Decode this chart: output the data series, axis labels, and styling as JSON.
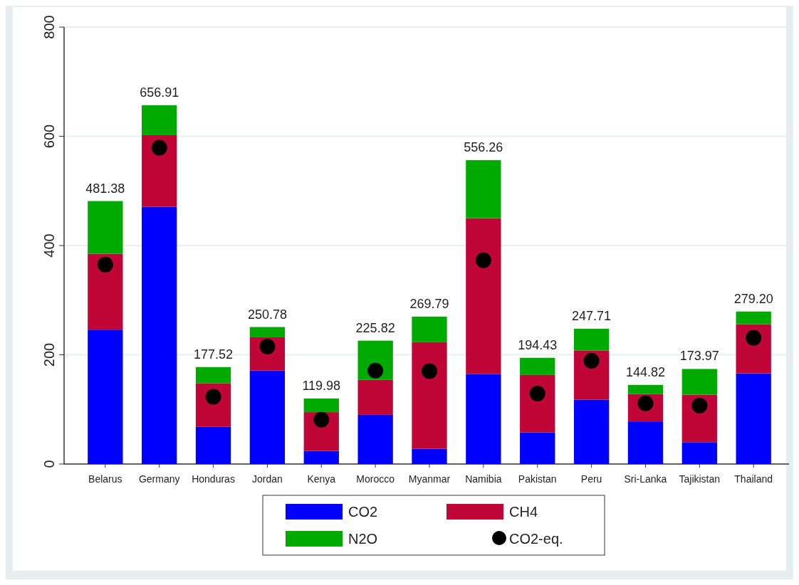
{
  "chart_data": {
    "type": "bar",
    "stacked": true,
    "categories": [
      "Belarus",
      "Germany",
      "Honduras",
      "Jordan",
      "Kenya",
      "Morocco",
      "Myanmar",
      "Namibia",
      "Pakistan",
      "Peru",
      "Sri-Lanka",
      "Tajikistan",
      "Thailand"
    ],
    "series": [
      {
        "name": "CO2",
        "color": "#0000ff",
        "values": [
          246,
          471,
          68,
          171,
          24,
          90,
          28,
          165,
          58,
          118,
          78,
          40,
          166
        ]
      },
      {
        "name": "CH4",
        "color": "#c00636",
        "values": [
          139,
          131,
          80,
          61,
          71,
          64,
          195,
          285,
          105,
          90,
          50,
          87,
          90
        ]
      },
      {
        "name": "N2O",
        "color": "#00aa00",
        "values": [
          96.38,
          54.91,
          29.52,
          18.78,
          24.98,
          71.82,
          46.79,
          106.26,
          31.43,
          39.71,
          16.82,
          46.97,
          23.2
        ]
      },
      {
        "name": "CO2-eq.",
        "type": "scatter",
        "color": "#000000",
        "marker": "circle",
        "x": [
          "Belarus",
          "Germany",
          "Honduras",
          "Jordan",
          "Kenya",
          "Morocco",
          "Myanmar",
          "Namibia",
          "Pakistan",
          "Peru",
          "Sri-Lanka",
          "Tajikistan",
          "Thailand"
        ],
        "values": [
          365,
          579,
          123,
          215,
          81,
          171,
          170,
          373,
          129,
          189,
          111,
          107,
          231
        ]
      }
    ],
    "totals": [
      "481.38",
      "656.91",
      "177.52",
      "250.78",
      "119.98",
      "225.82",
      "269.79",
      "556.26",
      "194.43",
      "247.71",
      "144.82",
      "173.97",
      "279.20"
    ],
    "ylim": [
      0,
      800
    ],
    "yticks": [
      0,
      200,
      400,
      600,
      800
    ],
    "grid": "y",
    "legend": "bottom"
  }
}
